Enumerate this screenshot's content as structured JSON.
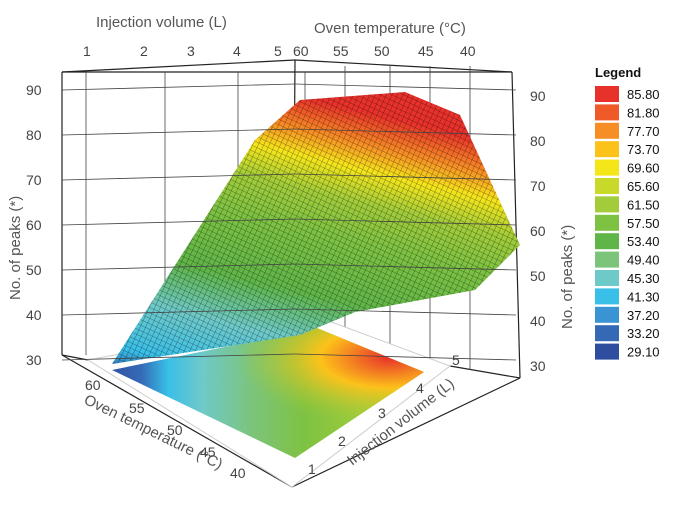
{
  "chart_data": {
    "type": "surface3d",
    "title": "",
    "top_labels": {
      "injection": "Injection volume (L)",
      "oven": "Oven temperature (°C)"
    },
    "z_label_left": "No. of peaks (*)",
    "z_label_right": "No. of peaks (*)",
    "oven_label_bottom": "Oven temperature (°C)",
    "injection_label_bottom": "Injection volume (L)",
    "injection_ticks": [
      "1",
      "2",
      "3",
      "4",
      "5"
    ],
    "oven_ticks_top": [
      "60",
      "55",
      "50",
      "45",
      "40"
    ],
    "oven_ticks_bottom": [
      "60",
      "55",
      "50",
      "45",
      "40"
    ],
    "z_ticks": [
      "30",
      "40",
      "50",
      "60",
      "70",
      "80",
      "90"
    ],
    "x": {
      "name": "Injection volume",
      "range": [
        1,
        5
      ]
    },
    "y": {
      "name": "Oven temperature",
      "range": [
        40,
        60
      ]
    },
    "z": {
      "name": "No. of peaks",
      "range": [
        30,
        90
      ]
    },
    "surface_corners": [
      {
        "injection": 1,
        "oven": 60,
        "peaks": 31
      },
      {
        "injection": 5,
        "oven": 60,
        "peaks": 39
      },
      {
        "injection": 1,
        "oven": 40,
        "peaks": 55
      },
      {
        "injection": 5,
        "oven": 40,
        "peaks": 59
      }
    ],
    "surface_max": {
      "injection": 3,
      "oven": 45,
      "peaks": 88
    },
    "legend": {
      "title": "Legend",
      "items": [
        {
          "label": "85.80",
          "color": "#e8312a"
        },
        {
          "label": "81.80",
          "color": "#f05a28"
        },
        {
          "label": "77.70",
          "color": "#f78e25"
        },
        {
          "label": "73.70",
          "color": "#fcc21a"
        },
        {
          "label": "69.60",
          "color": "#f5e61a"
        },
        {
          "label": "65.60",
          "color": "#c8d92a"
        },
        {
          "label": "61.50",
          "color": "#a2cc3a"
        },
        {
          "label": "57.50",
          "color": "#7ec242"
        },
        {
          "label": "53.40",
          "color": "#5fb548"
        },
        {
          "label": "49.40",
          "color": "#7cc47a"
        },
        {
          "label": "45.30",
          "color": "#6ec9c9"
        },
        {
          "label": "41.30",
          "color": "#39bfe8"
        },
        {
          "label": "37.20",
          "color": "#3a93d3"
        },
        {
          "label": "33.20",
          "color": "#3569b6"
        },
        {
          "label": "29.10",
          "color": "#2e4d9e"
        }
      ]
    }
  }
}
